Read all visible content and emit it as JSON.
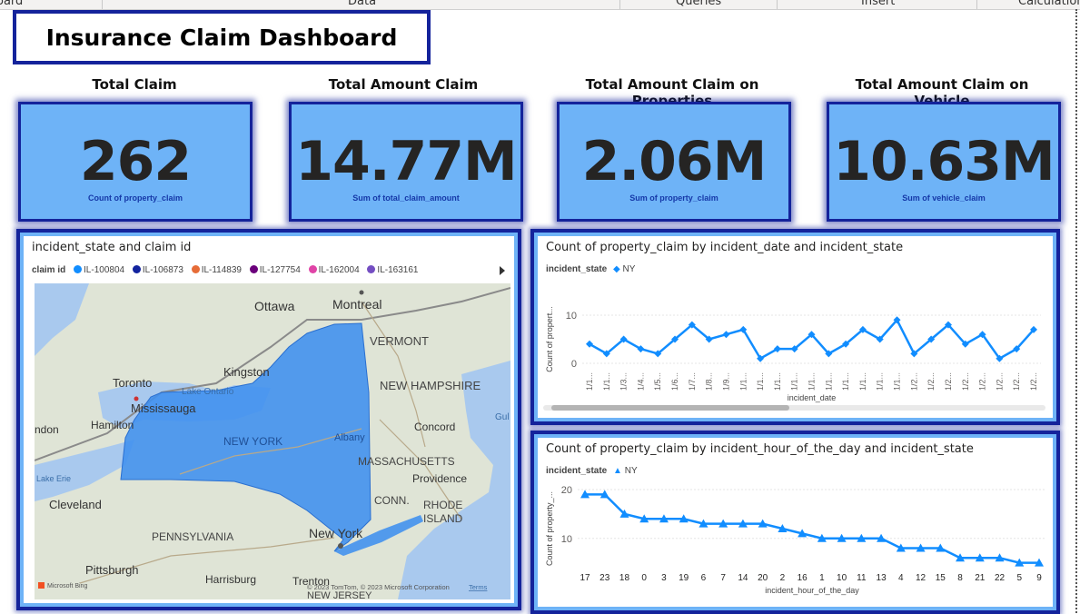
{
  "ribbon": {
    "tabs": [
      "oard",
      "Data",
      "Queries",
      "Insert",
      "Calculation"
    ]
  },
  "dashboard_title": "Insurance Claim Dashboard",
  "kpis": [
    {
      "label": "Total Claim",
      "value": "262",
      "subtitle": "Count of property_claim"
    },
    {
      "label": "Total Amount Claim",
      "value": "14.77M",
      "subtitle": "Sum of total_claim_amount"
    },
    {
      "label": "Total Amount Claim on Properties",
      "value": "2.06M",
      "subtitle": "Sum of property_claim"
    },
    {
      "label": "Total Amount Claim on Vehicle",
      "value": "10.63M",
      "subtitle": "Sum of vehicle_claim"
    }
  ],
  "map_panel": {
    "title": "incident_state and claim id",
    "legend_label": "claim id",
    "legend_items": [
      {
        "label": "IL-100804",
        "color": "#118dff"
      },
      {
        "label": "IL-106873",
        "color": "#12239e"
      },
      {
        "label": "IL-114839",
        "color": "#e66c37"
      },
      {
        "label": "IL-127754",
        "color": "#6b007b"
      },
      {
        "label": "IL-162004",
        "color": "#e044a7"
      },
      {
        "label": "IL-163161",
        "color": "#744ec2"
      }
    ],
    "places": {
      "ottawa": "Ottawa",
      "montreal": "Montreal",
      "vermont": "VERMONT",
      "kingston": "Kingston",
      "toronto": "Toronto",
      "lake_ontario": "Lake Ontario",
      "mississauga": "Mississauga",
      "new_hampshire": "NEW HAMPSHIRE",
      "ndon": "ndon",
      "hamilton": "Hamilton",
      "concord": "Concord",
      "gul": "Gul",
      "new_york_state": "NEW YORK",
      "albany": "Albany",
      "massachusetts": "MASSACHUSETTS",
      "lake_erie": "Lake Erie",
      "providence": "Providence",
      "cleveland": "Cleveland",
      "conn": "CONN.",
      "rhode": "RHODE",
      "island": "ISLAND",
      "new_york_city": "New York",
      "pennsylvania": "PENNSYLVANIA",
      "pittsburgh": "Pittsburgh",
      "harrisburg": "Harrisburg",
      "trenton": "Trenton",
      "new_jersey": "NEW JERSEY"
    },
    "bing_label": "Microsoft Bing",
    "copyright": "© 2023 TomTom, © 2023 Microsoft Corporation",
    "terms": "Terms"
  },
  "chart_data": [
    {
      "type": "line",
      "title": "Count of property_claim by incident_date and incident_state",
      "legend_title": "incident_state",
      "series": [
        {
          "name": "NY",
          "marker": "diamond",
          "color": "#118dff",
          "values": [
            4,
            2,
            5,
            3,
            2,
            5,
            8,
            5,
            6,
            7,
            1,
            3,
            3,
            6,
            2,
            4,
            7,
            5,
            9,
            2,
            5,
            8,
            4,
            6,
            1,
            3,
            7
          ]
        }
      ],
      "categories": [
        "1/1...",
        "1/1...",
        "1/3...",
        "1/4...",
        "1/5...",
        "1/6...",
        "1/7...",
        "1/8...",
        "1/9...",
        "1/1...",
        "1/1...",
        "1/1...",
        "1/1...",
        "1/1...",
        "1/1...",
        "1/1...",
        "1/1...",
        "1/1...",
        "1/1...",
        "1/2...",
        "1/2...",
        "1/2...",
        "1/2...",
        "1/2...",
        "1/2...",
        "1/2...",
        "1/2..."
      ],
      "xlabel": "incident_date",
      "ylabel": "Count of propert...",
      "yticks": [
        "0",
        "10"
      ],
      "ylim": [
        0,
        10
      ]
    },
    {
      "type": "line",
      "title": "Count of property_claim by incident_hour_of_the_day and incident_state",
      "legend_title": "incident_state",
      "series": [
        {
          "name": "NY",
          "marker": "triangle",
          "color": "#118dff",
          "values": [
            19,
            19,
            15,
            14,
            14,
            14,
            13,
            13,
            13,
            13,
            12,
            11,
            10,
            10,
            10,
            10,
            8,
            8,
            8,
            6,
            6,
            6,
            5,
            5
          ]
        }
      ],
      "categories": [
        "17",
        "23",
        "18",
        "0",
        "3",
        "19",
        "6",
        "7",
        "14",
        "20",
        "2",
        "16",
        "1",
        "10",
        "11",
        "13",
        "4",
        "12",
        "15",
        "8",
        "21",
        "22",
        "5",
        "9"
      ],
      "xlabel": "incident_hour_of_the_day",
      "ylabel": "Count of property_...",
      "yticks": [
        "10",
        "20"
      ],
      "ylim": [
        4,
        20
      ]
    }
  ]
}
